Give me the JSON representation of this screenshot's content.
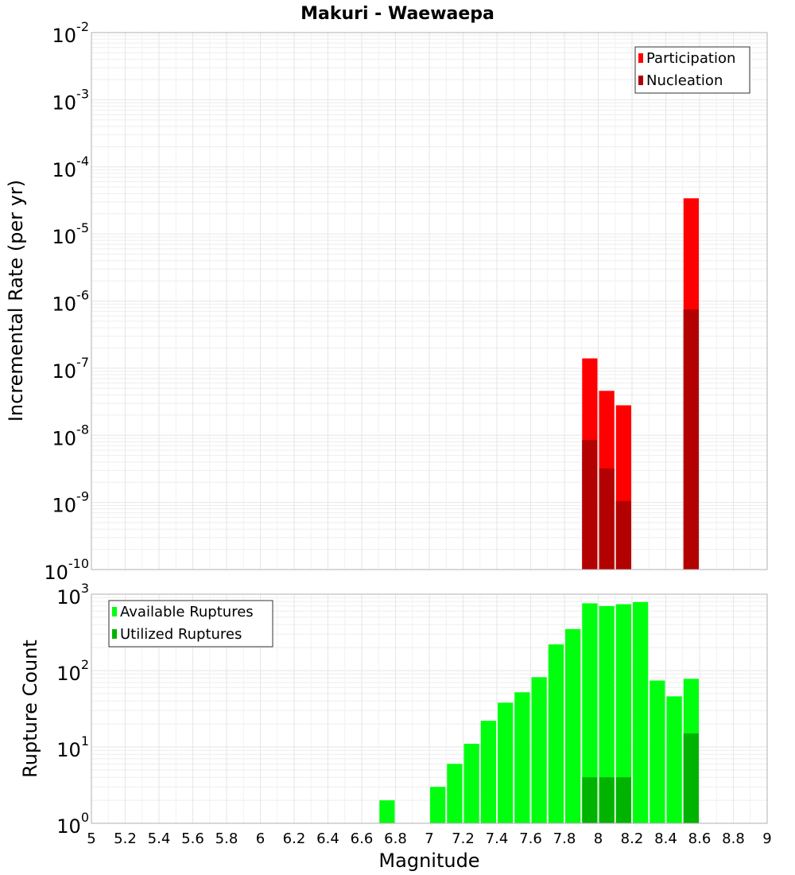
{
  "title": "Makuri - Waewaepa",
  "chart_data": [
    {
      "type": "bar",
      "id": "top",
      "ylabel": "Incremental Rate (per yr)",
      "xlabel": "",
      "yscale": "log",
      "ylim_exp": [
        -10,
        -2
      ],
      "xlim": [
        5,
        9
      ],
      "grid": true,
      "legend_position": "top-right",
      "series": [
        {
          "name": "Participation",
          "color": "#ff0000",
          "x": [
            7.95,
            8.05,
            8.15,
            8.55
          ],
          "values": [
            1.4e-07,
            4.6e-08,
            2.8e-08,
            3.4e-05
          ]
        },
        {
          "name": "Nucleation",
          "color": "#b30000",
          "x": [
            7.95,
            8.05,
            8.15,
            8.55
          ],
          "values": [
            8.5e-09,
            3.2e-09,
            1.05e-09,
            7.5e-07
          ]
        }
      ]
    },
    {
      "type": "bar",
      "id": "bottom",
      "ylabel": "Rupture Count",
      "xlabel": "Magnitude",
      "yscale": "log",
      "ylim_exp": [
        0,
        3
      ],
      "xlim": [
        5,
        9
      ],
      "xticks": [
        "5",
        "5.2",
        "5.4",
        "5.6",
        "5.8",
        "6",
        "6.2",
        "6.4",
        "6.6",
        "6.8",
        "7",
        "7.2",
        "7.4",
        "7.6",
        "7.8",
        "8",
        "8.2",
        "8.4",
        "8.6",
        "8.8",
        "9"
      ],
      "grid": true,
      "legend_position": "top-left",
      "series": [
        {
          "name": "Available Ruptures",
          "color": "#00ff0f",
          "x": [
            6.75,
            6.95,
            7.05,
            7.15,
            7.25,
            7.35,
            7.45,
            7.55,
            7.65,
            7.75,
            7.85,
            7.95,
            8.05,
            8.15,
            8.25,
            8.35,
            8.45,
            8.55
          ],
          "values": [
            2,
            1,
            3,
            6,
            11,
            22,
            38,
            52,
            82,
            220,
            350,
            760,
            700,
            740,
            790,
            74,
            46,
            78
          ]
        },
        {
          "name": "Utilized Ruptures",
          "color": "#00b300",
          "x": [
            7.95,
            8.05,
            8.15,
            8.25,
            8.55
          ],
          "values": [
            4,
            4,
            4,
            1,
            15
          ]
        }
      ]
    }
  ]
}
